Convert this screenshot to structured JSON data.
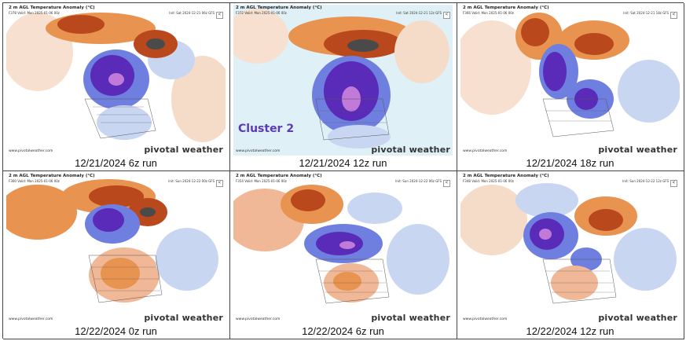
{
  "panels": [
    {
      "title": "2 m AGL Temperature Anomaly (°C)",
      "valid": "F378 Valid: Mon 2025-01-06 00z",
      "init": "Init: Sat 2024-12-21 06z GFS",
      "site": "www.pivotalweather.com",
      "brand": "pivotal weather",
      "caption": "12/21/2024 6z run",
      "label": "",
      "highlight": false
    },
    {
      "title": "2 m AGL Temperature Anomaly (°C)",
      "valid": "F372 Valid: Mon 2025-01-06 00z",
      "init": "Init: Sat 2024-12-21 12z GFS",
      "site": "www.pivotalweather.com",
      "brand": "pivotal weather",
      "caption": "12/21/2024 12z run",
      "label": "Cluster 2",
      "highlight": true
    },
    {
      "title": "2 m AGL Temperature Anomaly (°C)",
      "valid": "F366 Valid: Mon 2025-01-06 00z",
      "init": "Init: Sat 2024-12-21 18z GFS",
      "site": "www.pivotalweather.com",
      "brand": "pivotal weather",
      "caption": "12/21/2024 18z run",
      "label": "",
      "highlight": false
    },
    {
      "title": "2 m AGL Temperature Anomaly (°C)",
      "valid": "F360 Valid: Mon 2025-01-06 00z",
      "init": "Init: Sun 2024-12-22 00z GFS",
      "site": "www.pivotalweather.com",
      "brand": "pivotal weather",
      "caption": "12/22/2024 0z run",
      "label": "",
      "highlight": false
    },
    {
      "title": "2 m AGL Temperature Anomaly (°C)",
      "valid": "F354 Valid: Mon 2025-01-06 00z",
      "init": "Init: Sun 2024-12-22 06z GFS",
      "site": "www.pivotalweather.com",
      "brand": "pivotal weather",
      "caption": "12/22/2024 6z run",
      "label": "",
      "highlight": false
    },
    {
      "title": "2 m AGL Temperature Anomaly (°C)",
      "valid": "F348 Valid: Mon 2025-01-06 00z",
      "init": "Init: Sun 2024-12-22 12z GFS",
      "site": "www.pivotalweather.com",
      "brand": "pivotal weather",
      "caption": "12/22/2024 12z run",
      "label": "",
      "highlight": false
    }
  ],
  "colors": {
    "warm_light": "#f7d2b4",
    "warm_mid": "#e8934f",
    "warm_dark": "#b9481d",
    "cold_light": "#c9d6f2",
    "cold_mid": "#6f7fe0",
    "cold_dark": "#5a2ab8",
    "cold_core": "#c27ad9"
  }
}
